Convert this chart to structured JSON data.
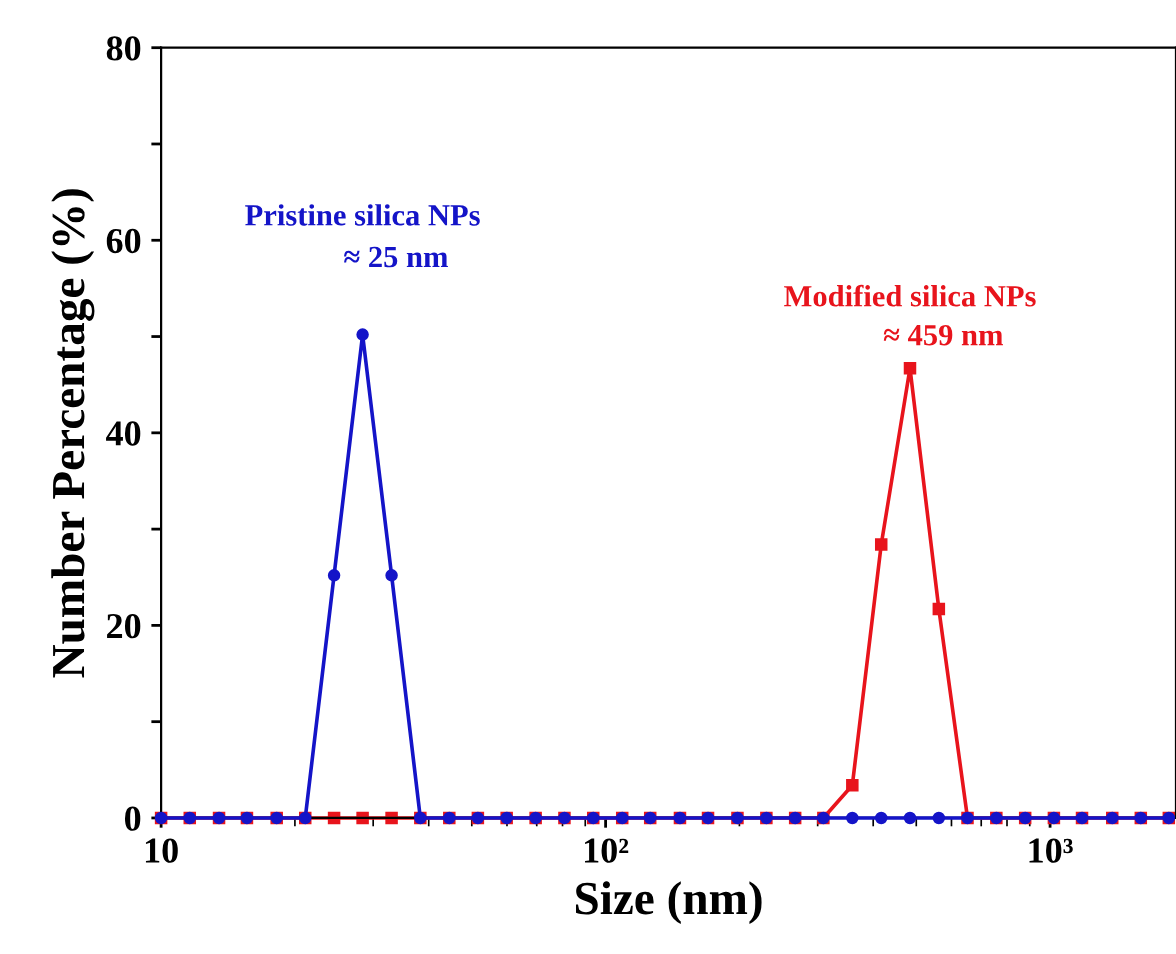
{
  "chart_data": {
    "type": "line",
    "xlabel": "Size (nm)",
    "ylabel": "Number Percentage (%)",
    "x": [
      10.0,
      11.6,
      13.5,
      15.6,
      18.2,
      21.1,
      24.5,
      28.4,
      33.0,
      38.3,
      44.5,
      51.6,
      59.9,
      69.6,
      80.8,
      93.8,
      109,
      126,
      147,
      170,
      198,
      230,
      267,
      309,
      359,
      417,
      484,
      562,
      652,
      757,
      879,
      1020,
      1180,
      1380,
      1600,
      1850
    ],
    "series": [
      {
        "name": "Modified silica NPs",
        "color": "#e8141c",
        "marker": "square",
        "values": [
          0,
          0,
          0,
          0,
          0,
          0,
          0,
          0,
          0,
          0,
          0,
          0,
          0,
          0,
          0,
          0,
          0,
          0,
          0,
          0,
          0,
          0,
          0,
          0,
          3.4,
          28.4,
          46.7,
          21.7,
          0,
          0,
          0,
          0,
          0,
          0,
          0,
          0
        ]
      },
      {
        "name": "Pristine silica NPs",
        "color": "#1414c8",
        "marker": "circle",
        "values": [
          0,
          0,
          0,
          0,
          0,
          0,
          25.2,
          50.2,
          25.2,
          0,
          0,
          0,
          0,
          0,
          0,
          0,
          0,
          0,
          0,
          0,
          0,
          0,
          0,
          0,
          0,
          0,
          0,
          0,
          0,
          0,
          0,
          0,
          0,
          0,
          0,
          0
        ]
      }
    ],
    "annotations": [
      {
        "text": "≈ 459 nm",
        "x": 484,
        "y": 46.7
      },
      {
        "text": "≈ 25 nm",
        "x": 28.4,
        "y": 50.2
      }
    ],
    "log": "x",
    "xlim": [
      10,
      1920
    ],
    "xticks": [
      10,
      {
        "value": 100,
        "label": "10²"
      },
      {
        "value": 1000,
        "label": "10³"
      }
    ],
    "ylim": [
      0,
      80
    ],
    "yticks": [
      0,
      {
        "value": 10,
        "label": null
      },
      20,
      {
        "value": 30,
        "label": null
      },
      40,
      {
        "value": 50,
        "label": null
      },
      60,
      {
        "value": 70,
        "label": null
      },
      80
    ],
    "grid": false,
    "legend": false,
    "line_style": "solid"
  }
}
